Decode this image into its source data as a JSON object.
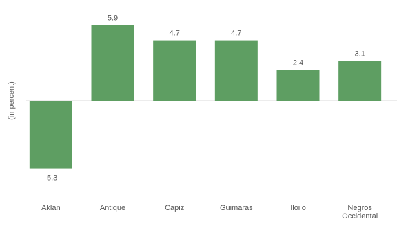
{
  "chart_data": {
    "type": "bar",
    "categories": [
      "Aklan",
      "Antique",
      "Capiz",
      "Guimaras",
      "Iloilo",
      "Negros Occidental"
    ],
    "values": [
      -5.3,
      5.9,
      4.7,
      4.7,
      2.4,
      3.1
    ],
    "data_labels": [
      "-5.3",
      "5.9",
      "4.7",
      "4.7",
      "2.4",
      "3.1"
    ],
    "title": "",
    "xlabel": "",
    "ylabel": "(in percent)",
    "ylim": [
      -6.5,
      7.0
    ],
    "grid": false,
    "legend": "none",
    "bar_color": "#5e9e62",
    "zero_line_color": "#d8d8d8"
  }
}
